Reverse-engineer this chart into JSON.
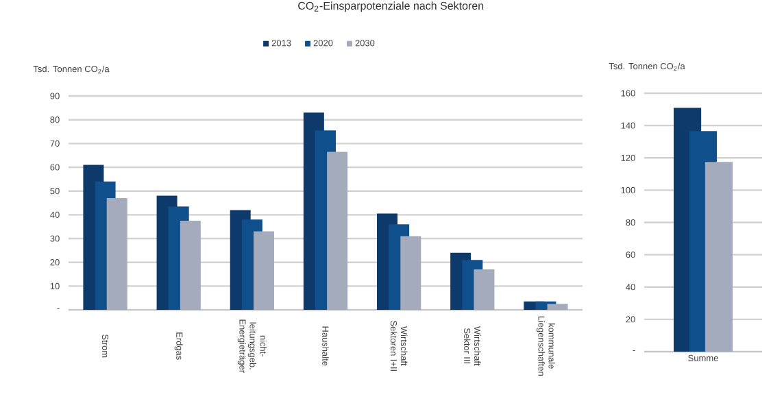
{
  "chart_data": [
    {
      "type": "bar",
      "title": "CO$_{2}$-Einsparpotenziale nach Sektoren",
      "ylabel": "Tsd. Tonnen CO$_{2}$/a",
      "categories": [
        "Strom",
        "Erdgas",
        "nicht-leitungsgeb. Energieträger",
        "Haushalte",
        "Wirtschaft Sektoren I+II",
        "Wirtschaft Sektor III",
        "kommunale Liegenschaften"
      ],
      "series": [
        {
          "name": "2013",
          "color": "#0d3a6b",
          "values": [
            61,
            48,
            42,
            83,
            40.5,
            24,
            3.5
          ]
        },
        {
          "name": "2020",
          "color": "#0e4f8c",
          "values": [
            54,
            43.5,
            38,
            75.5,
            36,
            21,
            3.5
          ]
        },
        {
          "name": "2030",
          "color": "#a3abbd",
          "values": [
            47,
            37.5,
            33,
            66.5,
            31,
            17,
            2.5
          ]
        }
      ],
      "ylim": [
        0,
        90
      ],
      "yticks": [
        {
          "value": 0,
          "label": "-"
        },
        10,
        20,
        30,
        40,
        50,
        60,
        70,
        80,
        90
      ],
      "grid": "y",
      "legend": "top"
    },
    {
      "type": "bar",
      "ylabel": "Tsd. Tonnen CO$_{2}$/a",
      "categories": [
        "Summe"
      ],
      "series": [
        {
          "color": "#0d3a6b",
          "values": [
            151
          ]
        },
        {
          "color": "#0e4f8c",
          "values": [
            136.5
          ]
        },
        {
          "color": "#a3abbd",
          "values": [
            117.5
          ]
        }
      ],
      "ylim": [
        0,
        160
      ],
      "yticks": [
        {
          "value": 0,
          "label": "-"
        },
        20,
        40,
        60,
        80,
        100,
        120,
        140,
        160
      ],
      "grid": "y"
    }
  ]
}
